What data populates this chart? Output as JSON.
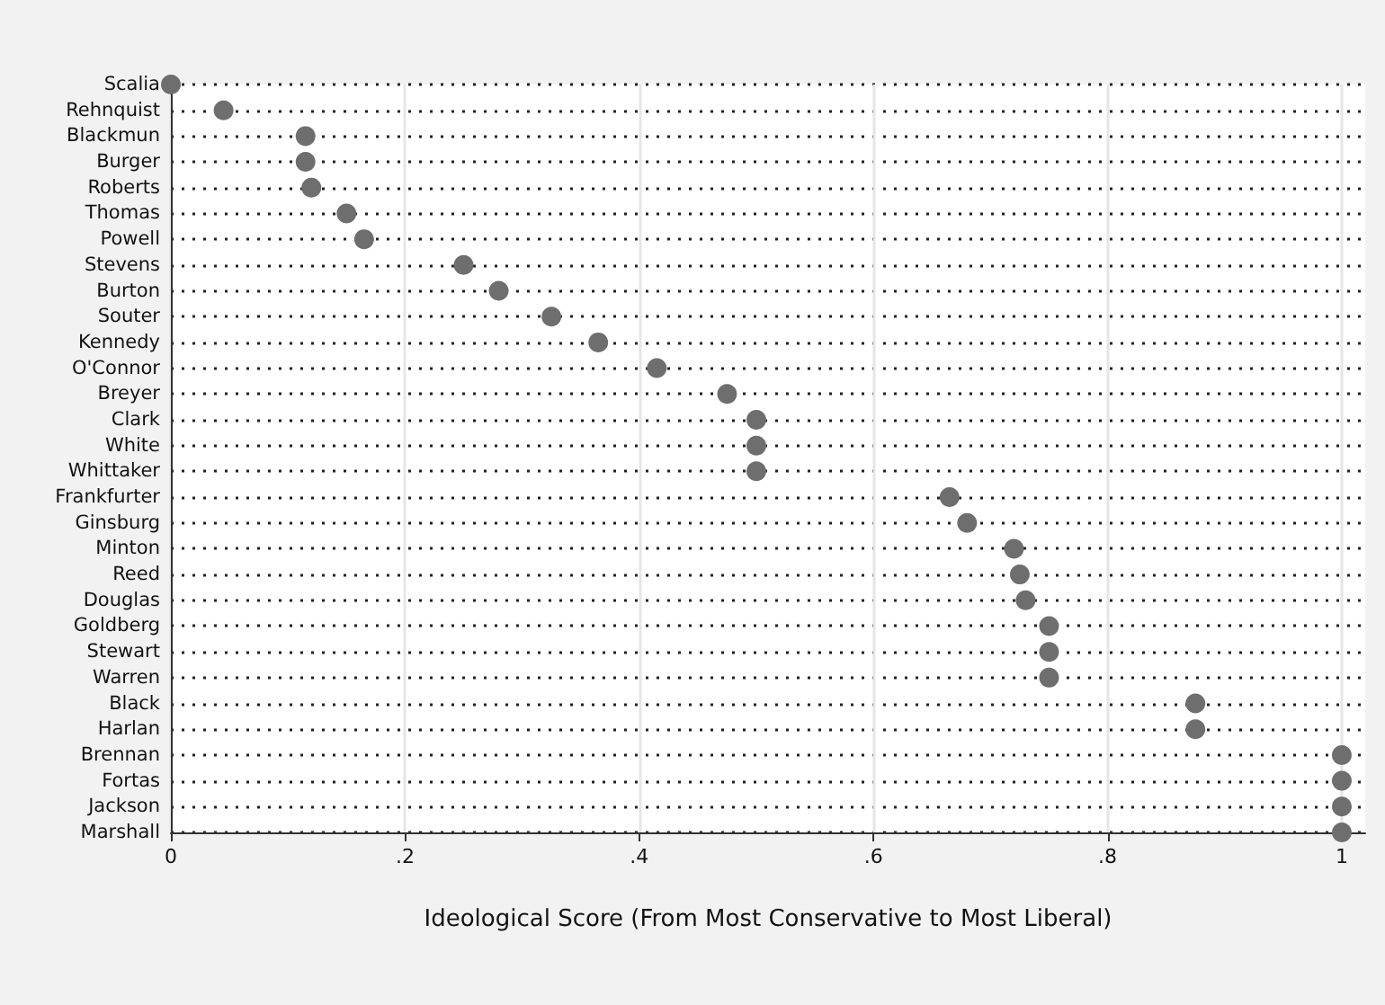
{
  "chart_data": {
    "type": "scatter",
    "orientation": "horizontal",
    "xlabel": "Ideological Score (From Most Conservative to Most Liberal)",
    "categories": [
      "Scalia",
      "Rehnquist",
      "Blackmun",
      "Burger",
      "Roberts",
      "Thomas",
      "Powell",
      "Stevens",
      "Burton",
      "Souter",
      "Kennedy",
      "O'Connor",
      "Breyer",
      "Clark",
      "White",
      "Whittaker",
      "Frankfurter",
      "Ginsburg",
      "Minton",
      "Reed",
      "Douglas",
      "Goldberg",
      "Stewart",
      "Warren",
      "Black",
      "Harlan",
      "Brennan",
      "Fortas",
      "Jackson",
      "Marshall"
    ],
    "values": [
      0,
      0.045,
      0.115,
      0.115,
      0.12,
      0.15,
      0.165,
      0.25,
      0.28,
      0.325,
      0.365,
      0.415,
      0.475,
      0.5,
      0.5,
      0.5,
      0.665,
      0.68,
      0.72,
      0.725,
      0.73,
      0.75,
      0.75,
      0.75,
      0.875,
      0.875,
      1,
      1,
      1,
      1
    ],
    "color": "#6e6e6e",
    "marker": "circle",
    "xlim": [
      0,
      1.02
    ],
    "xticks": [
      0,
      {
        "value": 0.2,
        "label": ".2"
      },
      {
        "value": 0.4,
        "label": ".4"
      },
      {
        "value": 0.6,
        "label": ".6"
      },
      {
        "value": 0.8,
        "label": ".8"
      },
      1
    ],
    "grid": true
  }
}
